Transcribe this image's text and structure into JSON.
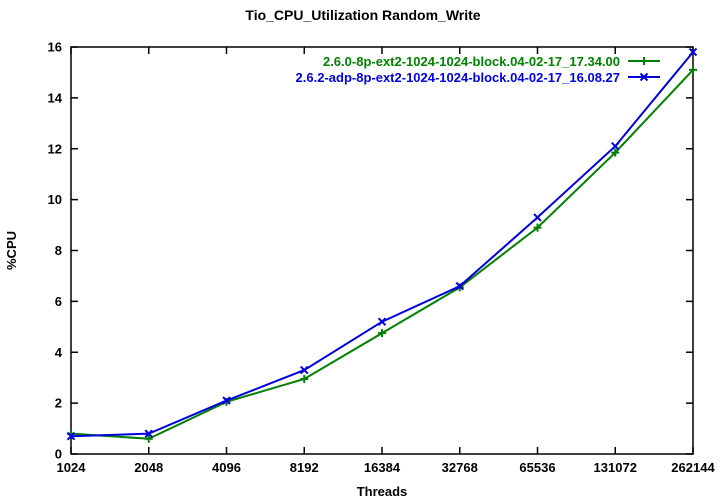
{
  "page": {
    "title": "Tio_CPU_Utilization Random_Write"
  },
  "chart_data": {
    "type": "line",
    "title": "Tio_CPU_Utilization Random_Write",
    "xlabel": "Threads",
    "ylabel": "%CPU",
    "x_scale": "log2-categorical",
    "categories": [
      "1024",
      "2048",
      "4096",
      "8192",
      "16384",
      "32768",
      "65536",
      "131072",
      "262144"
    ],
    "ylim": [
      0,
      16
    ],
    "ytick_step": 2,
    "yticks": [
      0,
      2,
      4,
      6,
      8,
      10,
      12,
      14,
      16
    ],
    "grid": false,
    "border": true,
    "tick_style": "inward-mirrored-all-borders",
    "legend_position": "top-right-inside",
    "background_color": "#ffffff",
    "border_color": "#000000",
    "text_color": "#000000",
    "series": [
      {
        "name": "2.6.0-8p-ext2-1024-1024-block.04-02-17_17.34.00",
        "color": "#008000",
        "marker": "plus",
        "values": [
          0.8,
          0.6,
          2.05,
          2.95,
          4.75,
          6.55,
          8.9,
          11.85,
          15.1
        ]
      },
      {
        "name": "2.6.2-adp-8p-ext2-1024-1024-block.04-02-17_16.08.27",
        "color": "#0000dd",
        "marker": "cross",
        "values": [
          0.7,
          0.8,
          2.1,
          3.3,
          5.2,
          6.6,
          9.3,
          12.1,
          15.8
        ]
      }
    ]
  }
}
